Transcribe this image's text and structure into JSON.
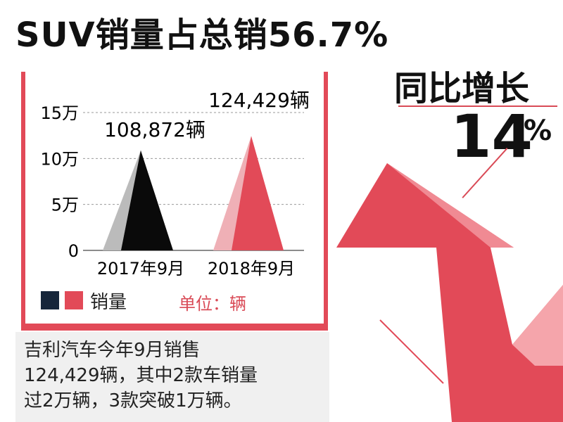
{
  "headline": {
    "title": "SUV销量占总销56.7%",
    "yoy_label": "同比增长",
    "yoy_value": "14",
    "yoy_unit": "%"
  },
  "chart_data": {
    "type": "bar",
    "categories": [
      "2017年9月",
      "2018年9月"
    ],
    "series": [
      {
        "name": "销量",
        "values": [
          108872,
          124429
        ]
      }
    ],
    "data_labels": [
      "108,872辆",
      "124,429辆"
    ],
    "yticks": [
      "0",
      "5万",
      "10万",
      "15万"
    ],
    "ytick_values": [
      0,
      50000,
      100000,
      150000
    ],
    "ylim": [
      0,
      150000
    ],
    "grid": true,
    "legend_label": "销量",
    "legend_colors": [
      "#16263a",
      "#e24a58"
    ],
    "unit_label": "单位：辆",
    "bar_colors": [
      "#0a0a0a",
      "#e24a58"
    ],
    "bar_shadow_colors": [
      "#bbbbbb",
      "#efb0b6"
    ]
  },
  "note": {
    "lines": [
      "吉利汽车今年9月销售",
      "124,429辆，其中2款车销量",
      "过2万辆，3款突破1万辆。"
    ]
  },
  "colors": {
    "accent": "#e24a58",
    "dark": "#111111"
  }
}
